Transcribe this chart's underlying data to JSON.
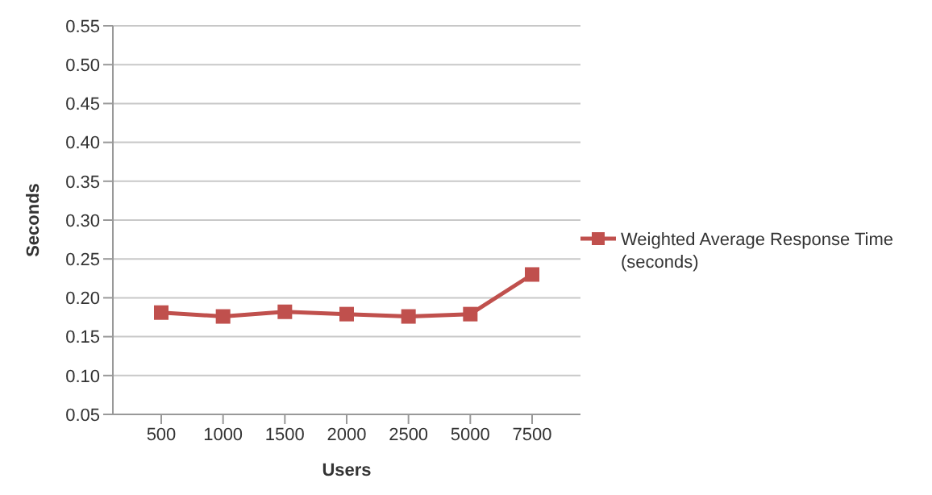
{
  "chart_data": {
    "type": "line",
    "xlabel": "Users",
    "ylabel": "Seconds",
    "categories": [
      "500",
      "1000",
      "1500",
      "2000",
      "2500",
      "5000",
      "7500"
    ],
    "series": [
      {
        "name": "Weighted Average Response Time (seconds)",
        "color": "#c0504d",
        "values": [
          0.181,
          0.176,
          0.182,
          0.179,
          0.176,
          0.179,
          0.23
        ]
      }
    ],
    "ylim": [
      0.05,
      0.55
    ],
    "yticks": [
      0.05,
      {
        "value": 0.1,
        "label": "0.10"
      },
      0.15,
      {
        "value": 0.2,
        "label": "0.20"
      },
      0.25,
      {
        "value": 0.3,
        "label": "0.30"
      },
      0.35,
      {
        "value": 0.4,
        "label": "0.40"
      },
      0.45,
      {
        "value": 0.5,
        "label": "0.50"
      },
      0.55
    ],
    "grid": "y",
    "legend": "right",
    "marker": "square",
    "line_style": "solid"
  }
}
